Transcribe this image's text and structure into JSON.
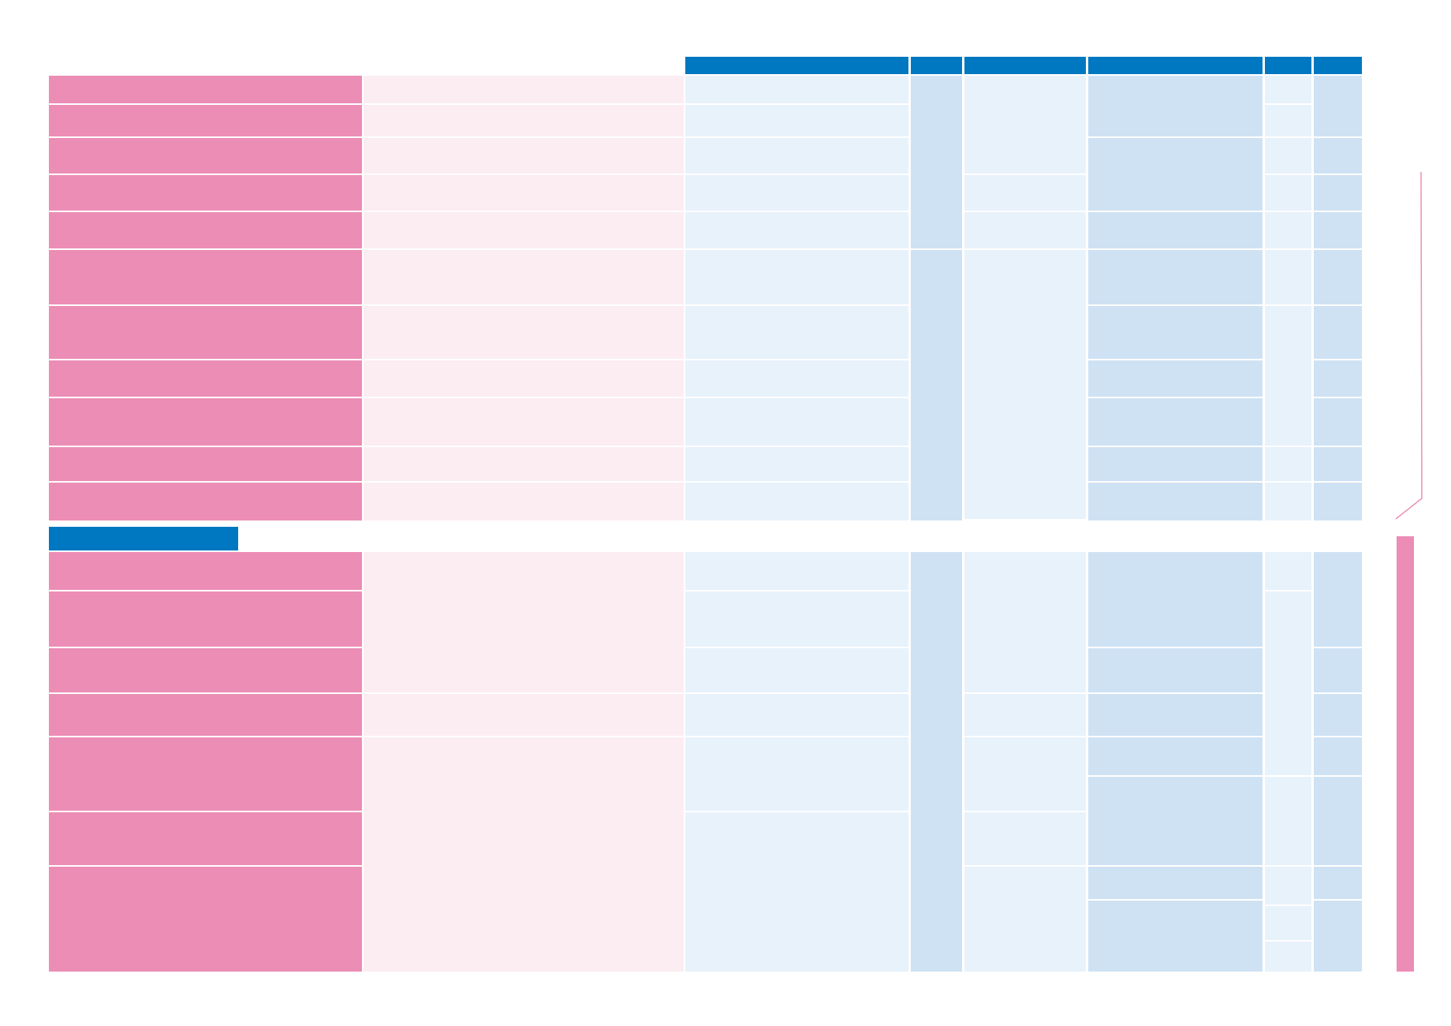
{
  "table": {
    "section2_label": "",
    "column_headers": [
      "",
      "",
      "",
      "",
      "",
      ""
    ],
    "row_labels": [],
    "cells": []
  },
  "colors": {
    "row_label": "#ec8db6",
    "row_label_light": "#fcedf2",
    "header": "#0078c1",
    "cell_light": "#e8f2fb",
    "cell_mid": "#cfe2f4"
  }
}
